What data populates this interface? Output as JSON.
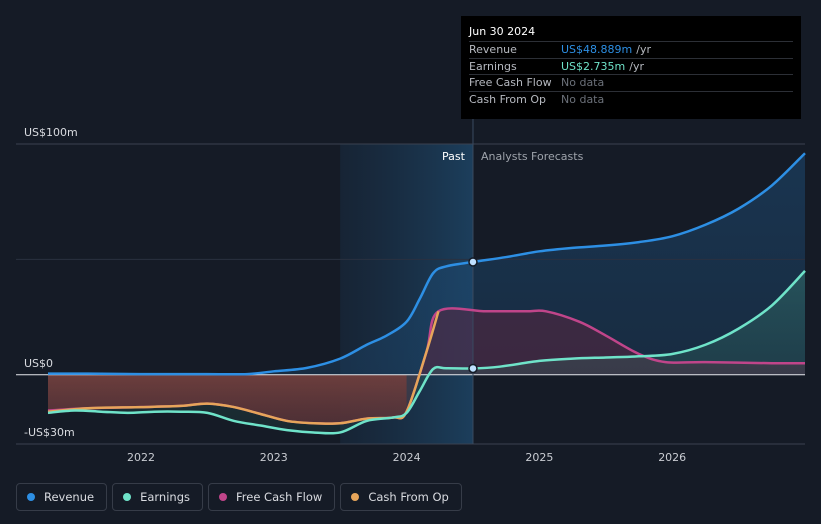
{
  "tooltip": {
    "date": "Jun 30 2024",
    "rows": [
      {
        "label": "Revenue",
        "value": "US$48.889m",
        "unit": "/yr"
      },
      {
        "label": "Earnings",
        "value": "US$2.735m",
        "unit": "/yr"
      },
      {
        "label": "Free Cash Flow",
        "value": "No data",
        "unit": ""
      },
      {
        "label": "Cash From Op",
        "value": "No data",
        "unit": ""
      }
    ]
  },
  "legend": [
    {
      "label": "Revenue",
      "color": "#2d8fe4"
    },
    {
      "label": "Earnings",
      "color": "#6fe3c9"
    },
    {
      "label": "Free Cash Flow",
      "color": "#c0458a"
    },
    {
      "label": "Cash From Op",
      "color": "#e6a55a"
    }
  ],
  "colors": {
    "background": "#151b26",
    "revenue": "#2d8fe4",
    "earnings": "#6fe3c9",
    "fcf": "#c0458a",
    "cfo": "#e6a55a"
  },
  "chart_data": {
    "type": "line",
    "y_tick_labels": [
      {
        "value": 100,
        "label": "US$100m"
      },
      {
        "value": 0,
        "label": "US$0"
      },
      {
        "value": -30,
        "label": "-US$30m"
      }
    ],
    "ylim": [
      -30,
      100
    ],
    "xlim": [
      2021.3,
      2027.0
    ],
    "x_tick_labels": [
      {
        "value": 2022,
        "label": "2022"
      },
      {
        "value": 2023,
        "label": "2023"
      },
      {
        "value": 2024,
        "label": "2024"
      },
      {
        "value": 2025,
        "label": "2025"
      },
      {
        "value": 2026,
        "label": "2026"
      }
    ],
    "past_label": "Past",
    "forecast_label": "Analysts Forecasts",
    "divider_x": 2024.5,
    "highlight_start_x": 2023.5,
    "series": [
      {
        "name": "Revenue",
        "key": "revenue",
        "points": [
          [
            2021.3,
            0.5
          ],
          [
            2021.6,
            0.5
          ],
          [
            2022.0,
            0.3
          ],
          [
            2022.5,
            0.3
          ],
          [
            2022.8,
            0.3
          ],
          [
            2023.0,
            1.5
          ],
          [
            2023.25,
            3
          ],
          [
            2023.5,
            7
          ],
          [
            2023.7,
            13
          ],
          [
            2023.85,
            17
          ],
          [
            2024.0,
            23
          ],
          [
            2024.1,
            33
          ],
          [
            2024.2,
            44
          ],
          [
            2024.3,
            47
          ],
          [
            2024.5,
            48.889
          ],
          [
            2024.75,
            51
          ],
          [
            2025.0,
            53.5
          ],
          [
            2025.25,
            55
          ],
          [
            2025.5,
            56
          ],
          [
            2025.75,
            57.5
          ],
          [
            2026.0,
            60
          ],
          [
            2026.25,
            65
          ],
          [
            2026.5,
            72
          ],
          [
            2026.75,
            82
          ],
          [
            2027.0,
            96
          ]
        ]
      },
      {
        "name": "Earnings",
        "key": "earnings",
        "points": [
          [
            2021.3,
            -16.5
          ],
          [
            2021.5,
            -15.5
          ],
          [
            2021.7,
            -16
          ],
          [
            2021.9,
            -16.5
          ],
          [
            2022.1,
            -16
          ],
          [
            2022.3,
            -16
          ],
          [
            2022.5,
            -16.5
          ],
          [
            2022.7,
            -20
          ],
          [
            2022.9,
            -22
          ],
          [
            2023.1,
            -24
          ],
          [
            2023.3,
            -25
          ],
          [
            2023.5,
            -25
          ],
          [
            2023.7,
            -20
          ],
          [
            2023.9,
            -18.5
          ],
          [
            2024.0,
            -16.5
          ],
          [
            2024.1,
            -7
          ],
          [
            2024.2,
            2.5
          ],
          [
            2024.3,
            2.8
          ],
          [
            2024.5,
            2.735
          ],
          [
            2024.7,
            3.5
          ],
          [
            2025.0,
            6
          ],
          [
            2025.25,
            7
          ],
          [
            2025.5,
            7.5
          ],
          [
            2025.75,
            8
          ],
          [
            2026.0,
            9
          ],
          [
            2026.25,
            13
          ],
          [
            2026.5,
            20
          ],
          [
            2026.75,
            30
          ],
          [
            2027.0,
            45
          ]
        ]
      },
      {
        "name": "Free Cash Flow",
        "key": "fcf",
        "points": [
          [
            2021.3,
            -15.5
          ],
          [
            2021.6,
            -14.5
          ],
          [
            2022.0,
            -14
          ],
          [
            2022.3,
            -13.5
          ],
          [
            2022.5,
            -12.5
          ],
          [
            2022.7,
            -14
          ],
          [
            2022.9,
            -17
          ],
          [
            2023.1,
            -20
          ],
          [
            2023.3,
            -21
          ],
          [
            2023.5,
            -21
          ],
          [
            2023.7,
            -19
          ],
          [
            2023.9,
            -18.5
          ],
          [
            2024.0,
            -16
          ],
          [
            2024.15,
            10
          ],
          [
            2024.24,
            27.5
          ],
          [
            2024.6,
            27.5
          ],
          [
            2024.9,
            27.5
          ],
          [
            2025.05,
            27.5
          ],
          [
            2025.3,
            23
          ],
          [
            2025.5,
            17
          ],
          [
            2025.75,
            9
          ],
          [
            2025.95,
            5.5
          ],
          [
            2026.25,
            5.5
          ],
          [
            2026.75,
            5
          ],
          [
            2027.0,
            5
          ]
        ]
      },
      {
        "name": "Cash From Op",
        "key": "cfo",
        "points": [
          [
            2021.3,
            -16
          ],
          [
            2021.6,
            -14.5
          ],
          [
            2022.0,
            -14
          ],
          [
            2022.3,
            -13.5
          ],
          [
            2022.5,
            -12.5
          ],
          [
            2022.7,
            -14
          ],
          [
            2022.9,
            -17
          ],
          [
            2023.1,
            -20
          ],
          [
            2023.3,
            -21
          ],
          [
            2023.5,
            -21
          ],
          [
            2023.7,
            -19
          ],
          [
            2023.9,
            -18.5
          ],
          [
            2024.0,
            -16
          ],
          [
            2024.15,
            10
          ],
          [
            2024.24,
            27.5
          ]
        ]
      }
    ]
  }
}
